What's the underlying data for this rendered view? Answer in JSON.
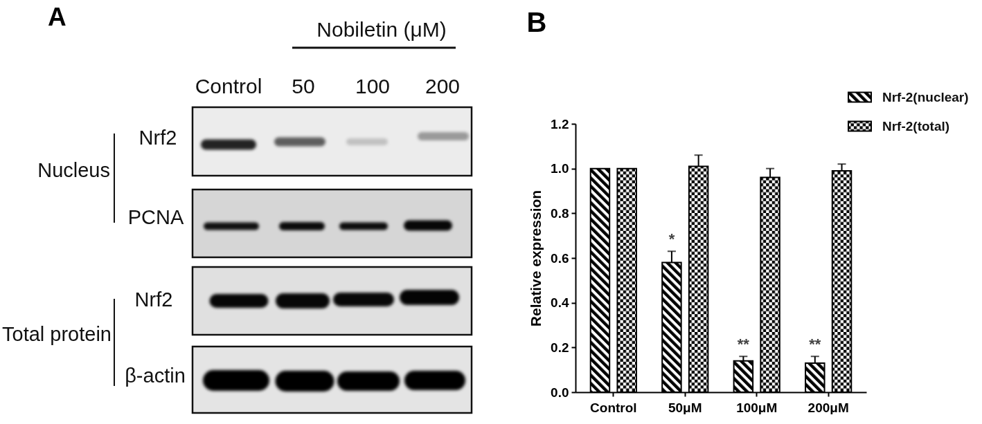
{
  "chart_data": [
    {
      "type": "other",
      "title": "A",
      "annotations": [
        "Nobiletin (μM)",
        "Control",
        "50",
        "100",
        "200",
        "Nrf2",
        "Nucleus",
        "PCNA",
        "Nrf2",
        "Total protein",
        "β-actin"
      ]
    },
    {
      "type": "bar",
      "title": "B",
      "ylabel": "Relative expression",
      "categories": [
        "Control",
        "50μM",
        "100μM",
        "200μM"
      ],
      "series": [
        {
          "name": "Nrf-2(nuclear)",
          "color": "#000000",
          "values": [
            1.0,
            0.58,
            0.14,
            0.13
          ],
          "errors": [
            null,
            [
              0.58,
              0.63
            ],
            [
              0.14,
              0.16
            ],
            [
              0.13,
              0.16
            ]
          ]
        },
        {
          "name": "Nrf-2(total)",
          "color": "#000000",
          "values": [
            1.0,
            1.01,
            0.96,
            0.99
          ],
          "errors": [
            null,
            [
              1.01,
              1.06
            ],
            [
              0.96,
              1.0
            ],
            [
              0.99,
              1.02
            ]
          ]
        }
      ],
      "ylim": [
        0,
        1.2
      ],
      "yticks": [
        {
          "value": 0,
          "label": "0.0"
        },
        0.2,
        0.4,
        0.6,
        0.8,
        {
          "value": 1,
          "label": "1.0"
        },
        1.2
      ],
      "legend": "top right",
      "annotations": [
        "*",
        "**",
        "**"
      ]
    }
  ]
}
